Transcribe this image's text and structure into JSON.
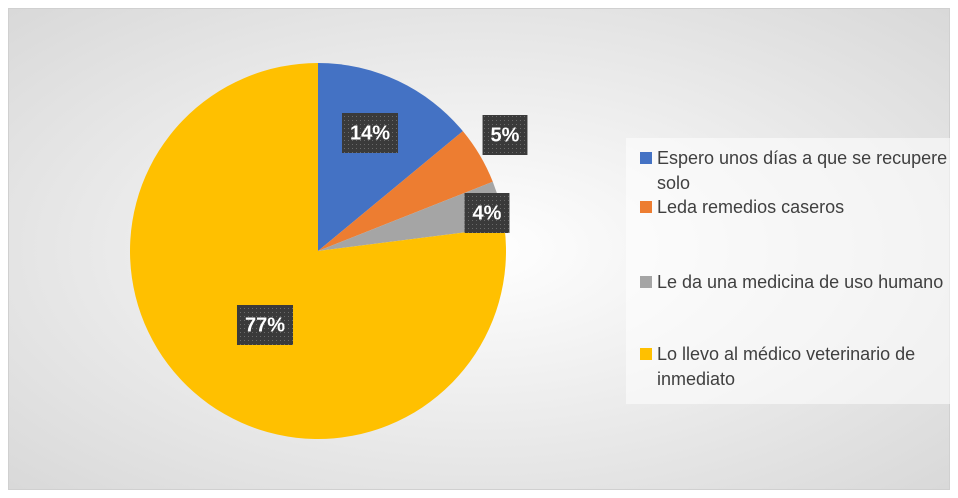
{
  "chart_data": {
    "type": "pie",
    "categories": [
      "Espero unos días a que se recupere solo",
      "Leda remedios caseros",
      "Le da una medicina de uso humano",
      "Lo llevo al médico veterinario de inmediato"
    ],
    "values": [
      14,
      5,
      4,
      77
    ],
    "value_labels": [
      "14%",
      "5%",
      "4%",
      "77%"
    ],
    "colors": [
      "#4472c4",
      "#ed7d31",
      "#a5a5a5",
      "#ffc000"
    ],
    "legend": "right"
  }
}
